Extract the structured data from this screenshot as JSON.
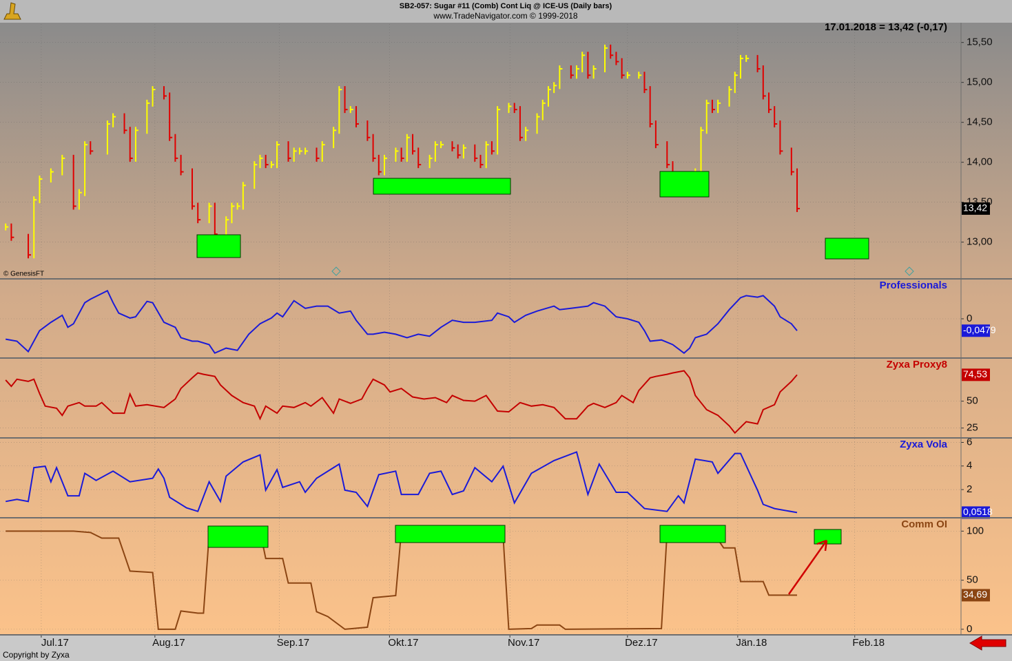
{
  "title": "SB2-057:  Sugar #11 (Comb) Cont Liq @ ICE-US  (Daily bars)",
  "subtitle": "www.TradeNavigator.com © 1999-2018",
  "quote": "17.01.2018 = 13,42 (-0,17)",
  "source": "© GenesisFT",
  "copyright": "Copyright by Zyxa",
  "chart_data": [
    {
      "type": "bars",
      "up_color": "#ffff00",
      "down_color": "#e00000",
      "grid": true,
      "xlim": [
        -1,
        169
      ],
      "ylim": [
        12.54,
        15.73
      ],
      "yticks": [
        {
          "value": 13,
          "label": "13,00"
        },
        {
          "value": 13.5,
          "label": "13,50"
        },
        {
          "value": 14,
          "label": "14,00"
        },
        {
          "value": 14.5,
          "label": "14,50"
        },
        {
          "value": 15,
          "label": "15,00"
        },
        {
          "value": 15.5,
          "label": "15,50"
        }
      ],
      "last_label": {
        "value": 13.42,
        "label": "13,42"
      },
      "last_color": "#000000",
      "x": [
        0,
        1,
        4,
        5,
        6,
        8,
        10,
        12,
        13,
        14,
        15,
        18,
        19,
        21,
        22,
        23,
        25,
        26,
        28,
        29,
        30,
        31,
        33,
        34,
        36,
        37,
        39,
        40,
        41,
        42,
        44,
        45,
        46,
        47,
        48,
        50,
        51,
        52,
        53,
        55,
        56,
        58,
        59,
        60,
        61,
        62,
        64,
        65,
        66,
        67,
        69,
        70,
        71,
        72,
        73,
        75,
        76,
        77,
        79,
        80,
        81,
        83,
        84,
        85,
        86,
        87,
        89,
        90,
        91,
        92,
        94,
        95,
        96,
        97,
        98,
        100,
        101,
        102,
        103,
        104,
        106,
        107,
        108,
        109,
        110,
        112,
        113,
        114,
        115,
        117,
        118,
        119,
        120,
        122,
        123,
        124,
        125,
        126,
        128,
        129,
        130,
        131,
        133,
        134,
        135,
        136,
        137,
        139,
        140
      ],
      "values": [
        13.19,
        13.06,
        12.84,
        13.53,
        13.79,
        13.88,
        14.05,
        13.45,
        13.62,
        14.22,
        14.14,
        14.48,
        14.57,
        14.4,
        14.05,
        14.4,
        14.74,
        14.91,
        14.83,
        14.31,
        14.05,
        13.88,
        13.45,
        13.28,
        13.45,
        13.1,
        13.28,
        13.45,
        13.45,
        13.71,
        13.97,
        14.05,
        13.97,
        13.97,
        14.22,
        14.05,
        14.14,
        14.14,
        14.14,
        14.05,
        14.22,
        14.4,
        14.91,
        14.66,
        14.66,
        14.48,
        14.31,
        14.05,
        13.88,
        14.05,
        14.14,
        14.05,
        14.31,
        14.14,
        13.97,
        14.05,
        14.22,
        14.22,
        14.18,
        14.09,
        14.18,
        14.05,
        13.97,
        14.22,
        14.14,
        14.66,
        14.7,
        14.66,
        14.31,
        14.4,
        14.57,
        14.74,
        14.91,
        14.96,
        15.17,
        15.09,
        15.17,
        15.34,
        15.09,
        15.17,
        15.43,
        15.34,
        15.26,
        15.09,
        15.09,
        15.09,
        14.91,
        14.48,
        14.22,
        13.97,
        13.84,
        13.84,
        13.79,
        13.88,
        14.4,
        14.74,
        14.66,
        14.74,
        14.91,
        15.09,
        15.3,
        15.3,
        15.17,
        14.83,
        14.66,
        14.48,
        14.14,
        13.88,
        13.42
      ]
    },
    {
      "type": "line",
      "title": "Professionals",
      "color": "#1a1ad8",
      "grid": true,
      "xlim": [
        -1,
        169
      ],
      "ylim": [
        -0.158,
        0.158
      ],
      "yticks": [
        0
      ],
      "last_label": {
        "value": -0.0479,
        "label": "-0,0479"
      },
      "last_color": "#1a1ad8",
      "x": [
        0,
        2,
        4,
        6,
        8,
        10,
        11,
        12,
        14,
        15,
        18,
        19,
        20,
        22,
        23,
        25,
        26,
        28,
        30,
        31,
        33,
        34,
        36,
        37,
        39,
        41,
        43,
        45,
        47,
        48,
        49,
        51,
        53,
        55,
        57,
        59,
        61,
        62,
        64,
        65,
        67,
        69,
        71,
        73,
        75,
        77,
        79,
        81,
        83,
        86,
        87,
        89,
        90,
        92,
        94,
        97,
        98,
        100,
        103,
        104,
        106,
        108,
        110,
        112,
        113,
        114,
        116,
        118,
        120,
        121,
        122,
        124,
        126,
        128,
        130,
        131,
        133,
        134,
        136,
        137,
        139,
        140
      ],
      "values": [
        -0.082,
        -0.09,
        -0.132,
        -0.048,
        -0.014,
        0.014,
        -0.034,
        -0.02,
        0.065,
        0.079,
        0.113,
        0.065,
        0.023,
        0.003,
        0.008,
        0.07,
        0.065,
        -0.014,
        -0.034,
        -0.076,
        -0.09,
        -0.09,
        -0.104,
        -0.138,
        -0.118,
        -0.127,
        -0.062,
        -0.02,
        0.003,
        0.023,
        0.008,
        0.073,
        0.042,
        0.051,
        0.051,
        0.023,
        0.031,
        -0.006,
        -0.062,
        -0.062,
        -0.054,
        -0.062,
        -0.076,
        -0.062,
        -0.07,
        -0.034,
        -0.006,
        -0.014,
        -0.014,
        -0.006,
        0.023,
        0.008,
        -0.014,
        0.014,
        0.031,
        0.051,
        0.037,
        0.042,
        0.051,
        0.065,
        0.051,
        0.008,
        0,
        -0.014,
        -0.048,
        -0.09,
        -0.085,
        -0.104,
        -0.138,
        -0.118,
        -0.076,
        -0.062,
        -0.02,
        0.037,
        0.085,
        0.093,
        0.087,
        0.093,
        0.051,
        0.008,
        -0.02,
        -0.0479
      ]
    },
    {
      "type": "line",
      "title": "Zyxa Proxy8",
      "color": "#c40000",
      "grid": true,
      "xlim": [
        -1,
        169
      ],
      "ylim": [
        15.8,
        89.5
      ],
      "yticks": [
        25,
        50
      ],
      "last_label": {
        "value": 74.53,
        "label": "74,53"
      },
      "last_color": "#c40000",
      "x": [
        0,
        1,
        2,
        4,
        5,
        6,
        7,
        9,
        10,
        11,
        13,
        14,
        16,
        17,
        19,
        21,
        22,
        23,
        25,
        28,
        30,
        31,
        33,
        34,
        35,
        37,
        38,
        40,
        42,
        44,
        45,
        46,
        48,
        49,
        51,
        53,
        54,
        56,
        58,
        59,
        61,
        63,
        64,
        65,
        67,
        68,
        70,
        72,
        74,
        76,
        78,
        79,
        81,
        83,
        85,
        87,
        89,
        91,
        93,
        95,
        97,
        99,
        101,
        103,
        104,
        106,
        108,
        109,
        111,
        112,
        114,
        115,
        117,
        118,
        120,
        121,
        122,
        124,
        126,
        128,
        129,
        130,
        131,
        133,
        134,
        136,
        137,
        139,
        140
      ],
      "values": [
        69.7,
        63.8,
        70.4,
        68.4,
        70.4,
        57.2,
        45.4,
        43.4,
        36.8,
        45.4,
        48.7,
        45.4,
        45.4,
        48.7,
        38.8,
        38.8,
        56.6,
        45.4,
        46.7,
        44.1,
        52.0,
        61.8,
        71.7,
        76.3,
        75.0,
        73.0,
        65.1,
        55.3,
        48.7,
        45.4,
        33.6,
        45.4,
        38.8,
        45.4,
        44.1,
        48.7,
        45.4,
        53.3,
        38.8,
        52.0,
        48.0,
        52.0,
        61.8,
        70.4,
        65.1,
        58.6,
        61.8,
        53.9,
        52.0,
        53.3,
        48.7,
        55.3,
        50.7,
        50.0,
        55.3,
        40.8,
        40.1,
        48.7,
        45.4,
        46.7,
        44.1,
        33.6,
        33.6,
        45.4,
        48.0,
        44.1,
        48.7,
        55.3,
        48.7,
        59.9,
        71.7,
        73.0,
        75.0,
        76.3,
        78.3,
        71.7,
        55.3,
        42.1,
        36.8,
        27.0,
        20.4,
        25.7,
        30.9,
        28.9,
        42.1,
        46.7,
        58.6,
        68.4,
        74.53
      ]
    },
    {
      "type": "line",
      "title": "Zyxa Vola",
      "color": "#1a1ad8",
      "grid": true,
      "xlim": [
        -1,
        169
      ],
      "ylim": [
        -0.39,
        6.32
      ],
      "yticks": [
        2,
        4,
        6
      ],
      "last_label": {
        "value": 0.0518,
        "label": "0,0518"
      },
      "last_color": "#1a1ad8",
      "x": [
        0,
        2,
        4,
        5,
        7,
        8,
        9,
        11,
        13,
        14,
        16,
        19,
        22,
        26,
        27,
        28,
        29,
        32,
        34,
        36,
        38,
        39,
        42,
        45,
        46,
        48,
        49,
        52,
        53,
        55,
        59,
        60,
        62,
        64,
        66,
        69,
        70,
        73,
        75,
        77,
        79,
        81,
        83,
        86,
        88,
        90,
        93,
        97,
        101,
        103,
        105,
        108,
        110,
        113,
        117,
        119,
        120,
        122,
        125,
        126,
        129,
        130,
        133,
        134,
        136,
        140
      ],
      "values": [
        0.99,
        1.17,
        0.99,
        3.86,
        3.98,
        2.66,
        3.86,
        1.47,
        1.47,
        3.38,
        2.78,
        3.56,
        2.66,
        2.96,
        3.74,
        2.96,
        1.35,
        0.45,
        0.15,
        2.66,
        0.99,
        3.14,
        4.34,
        4.94,
        1.95,
        3.68,
        2.19,
        2.66,
        1.77,
        2.96,
        4.16,
        1.95,
        1.77,
        0.57,
        3.26,
        3.56,
        1.59,
        1.59,
        3.38,
        3.56,
        1.59,
        1.89,
        3.86,
        2.66,
        3.98,
        0.87,
        3.38,
        4.46,
        5.18,
        1.59,
        4.16,
        1.77,
        1.77,
        0.39,
        0.15,
        1.47,
        0.87,
        4.58,
        4.34,
        3.38,
        5.06,
        5.06,
        1.95,
        0.75,
        0.39,
        0.0518
      ]
    },
    {
      "type": "line",
      "title": "Comm OI",
      "color": "#8b4513",
      "grid": true,
      "xlim": [
        -1,
        169
      ],
      "ylim": [
        -5.7,
        112.9
      ],
      "yticks": [
        0,
        50,
        100
      ],
      "last_label": {
        "value": 34.69,
        "label": "34,69"
      },
      "last_color": "#8b4513",
      "xticks": [
        {
          "value": 6.3,
          "label": "Jul.17"
        },
        {
          "value": 26.4,
          "label": "Aug.17"
        },
        {
          "value": 48.4,
          "label": "Sep.17"
        },
        {
          "value": 67.9,
          "label": "Okt.17"
        },
        {
          "value": 89.2,
          "label": "Nov.17"
        },
        {
          "value": 110,
          "label": "Dez.17"
        },
        {
          "value": 129.5,
          "label": "Jän.18"
        },
        {
          "value": 150.2,
          "label": "Feb.18"
        }
      ],
      "x": [
        0,
        11,
        12,
        15,
        17,
        20,
        22,
        26,
        27,
        30,
        31,
        34,
        35,
        36,
        40,
        45,
        46,
        49,
        50,
        54,
        55,
        57,
        60,
        64,
        65,
        69,
        70,
        75,
        82,
        88,
        89,
        93,
        94,
        98,
        99,
        116,
        117,
        121,
        123,
        125,
        127,
        129,
        130,
        134,
        135,
        140
      ],
      "values": [
        100,
        100,
        100,
        98.6,
        92.9,
        92.9,
        59.3,
        57.9,
        0,
        0,
        18.6,
        16.4,
        16.4,
        96.4,
        100,
        100,
        72.1,
        72.1,
        47.1,
        47.1,
        17.9,
        12.9,
        0,
        2.1,
        32.1,
        34.3,
        100,
        100,
        98.6,
        95,
        0,
        0.7,
        4.3,
        4.3,
        0,
        0.7,
        98.6,
        98.6,
        100,
        100,
        82.9,
        82.9,
        48.6,
        48.6,
        34.69,
        34.69
      ]
    }
  ]
}
